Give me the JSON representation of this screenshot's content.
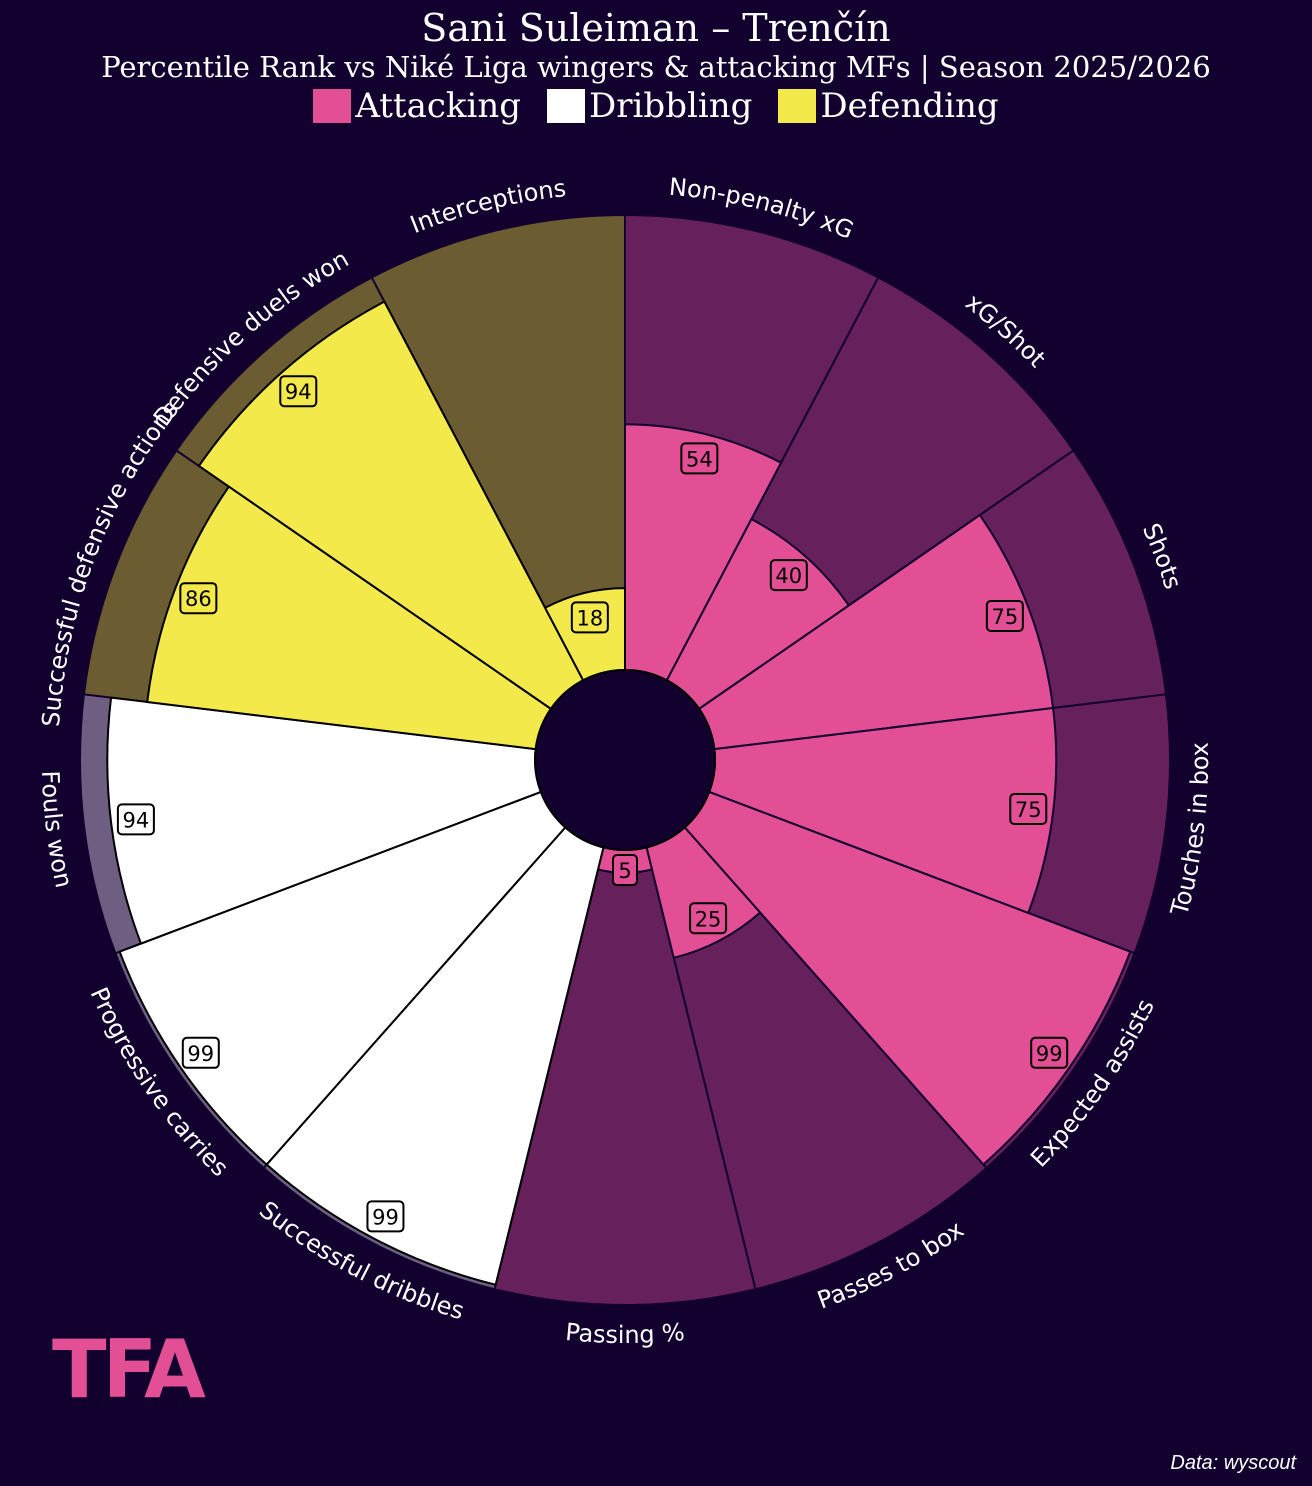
{
  "title": "Sani Suleiman – Trenčín",
  "subtitle": "Percentile Rank vs Niké Liga wingers & attacking MFs | Season 2025/2026",
  "legend": [
    {
      "label": "Attacking",
      "color": "#e24f94"
    },
    {
      "label": "Dribbling",
      "color": "#ffffff"
    },
    {
      "label": "Defending",
      "color": "#f4e94a"
    }
  ],
  "logo": "TFA",
  "credit": "Data: wyscout",
  "colors": {
    "background": "#12012f",
    "attacking": "#e24f94",
    "attacking_bg": "#66205c",
    "dribbling": "#ffffff",
    "dribbling_bg": "#6d5e82",
    "defending": "#f4e94a",
    "defending_bg": "#6b5c32"
  },
  "chart_data": {
    "type": "pizza",
    "title": "Sani Suleiman – Trenčín",
    "subtitle": "Percentile Rank vs Niké Liga wingers & attacking MFs | Season 2025/2026",
    "range": [
      0,
      100
    ],
    "categories": [
      "Non-penalty xG",
      "xG/Shot",
      "Shots",
      "Touches in box",
      "Expected assists",
      "Passes to box",
      "Passing %",
      "Successful dribbles",
      "Progressive carries",
      "Fouls won",
      "Successful defensive actions",
      "Defensive duels won",
      "Interceptions"
    ],
    "values": [
      54,
      40,
      75,
      75,
      99,
      25,
      5,
      99,
      99,
      94,
      86,
      94,
      18
    ],
    "groups": [
      "Attacking",
      "Attacking",
      "Attacking",
      "Attacking",
      "Attacking",
      "Attacking",
      "Attacking",
      "Dribbling",
      "Dribbling",
      "Dribbling",
      "Defending",
      "Defending",
      "Defending"
    ]
  }
}
